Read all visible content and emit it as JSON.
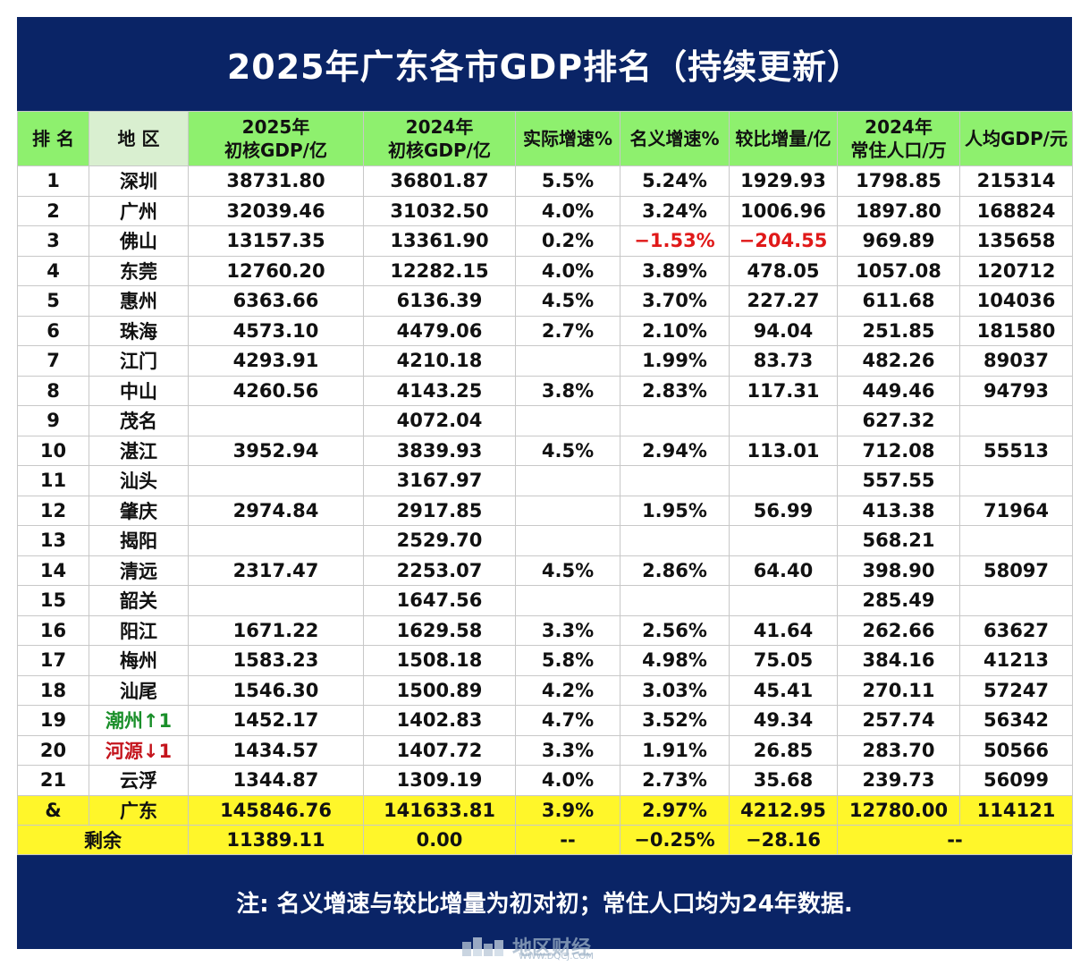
{
  "title": "2025年广东各市GDP排名（持续更新）",
  "headers": {
    "rank": "排 名",
    "region": "地 区",
    "gdp2025_line1": "2025年",
    "gdp2025_line2": "初核GDP/亿",
    "gdp2024_line1": "2024年",
    "gdp2024_line2": "初核GDP/亿",
    "real_growth": "实际增速%",
    "nominal_growth": "名义增速%",
    "increment": "较比增量/亿",
    "pop_line1": "2024年",
    "pop_line2": "常住人口/万",
    "per_capita": "人均GDP/元"
  },
  "rows": [
    {
      "rank": "1",
      "city": "深圳",
      "gdp2025": "38731.80",
      "gdp2024": "36801.87",
      "real": "5.5%",
      "nominal": "5.24%",
      "increment": "1929.93",
      "pop": "1798.85",
      "per_capita": "215314"
    },
    {
      "rank": "2",
      "city": "广州",
      "gdp2025": "32039.46",
      "gdp2024": "31032.50",
      "real": "4.0%",
      "nominal": "3.24%",
      "increment": "1006.96",
      "pop": "1897.80",
      "per_capita": "168824"
    },
    {
      "rank": "3",
      "city": "佛山",
      "gdp2025": "13157.35",
      "gdp2024": "13361.90",
      "real": "0.2%",
      "nominal": "−1.53%",
      "increment": "−204.55",
      "pop": "969.89",
      "per_capita": "135658"
    },
    {
      "rank": "4",
      "city": "东莞",
      "gdp2025": "12760.20",
      "gdp2024": "12282.15",
      "real": "4.0%",
      "nominal": "3.89%",
      "increment": "478.05",
      "pop": "1057.08",
      "per_capita": "120712"
    },
    {
      "rank": "5",
      "city": "惠州",
      "gdp2025": "6363.66",
      "gdp2024": "6136.39",
      "real": "4.5%",
      "nominal": "3.70%",
      "increment": "227.27",
      "pop": "611.68",
      "per_capita": "104036"
    },
    {
      "rank": "6",
      "city": "珠海",
      "gdp2025": "4573.10",
      "gdp2024": "4479.06",
      "real": "2.7%",
      "nominal": "2.10%",
      "increment": "94.04",
      "pop": "251.85",
      "per_capita": "181580"
    },
    {
      "rank": "7",
      "city": "江门",
      "gdp2025": "4293.91",
      "gdp2024": "4210.18",
      "real": "",
      "nominal": "1.99%",
      "increment": "83.73",
      "pop": "482.26",
      "per_capita": "89037"
    },
    {
      "rank": "8",
      "city": "中山",
      "gdp2025": "4260.56",
      "gdp2024": "4143.25",
      "real": "3.8%",
      "nominal": "2.83%",
      "increment": "117.31",
      "pop": "449.46",
      "per_capita": "94793"
    },
    {
      "rank": "9",
      "city": "茂名",
      "gdp2025": "",
      "gdp2024": "4072.04",
      "real": "",
      "nominal": "",
      "increment": "",
      "pop": "627.32",
      "per_capita": ""
    },
    {
      "rank": "10",
      "city": "湛江",
      "gdp2025": "3952.94",
      "gdp2024": "3839.93",
      "real": "4.5%",
      "nominal": "2.94%",
      "increment": "113.01",
      "pop": "712.08",
      "per_capita": "55513"
    },
    {
      "rank": "11",
      "city": "汕头",
      "gdp2025": "",
      "gdp2024": "3167.97",
      "real": "",
      "nominal": "",
      "increment": "",
      "pop": "557.55",
      "per_capita": ""
    },
    {
      "rank": "12",
      "city": "肇庆",
      "gdp2025": "2974.84",
      "gdp2024": "2917.85",
      "real": "",
      "nominal": "1.95%",
      "increment": "56.99",
      "pop": "413.38",
      "per_capita": "71964"
    },
    {
      "rank": "13",
      "city": "揭阳",
      "gdp2025": "",
      "gdp2024": "2529.70",
      "real": "",
      "nominal": "",
      "increment": "",
      "pop": "568.21",
      "per_capita": ""
    },
    {
      "rank": "14",
      "city": "清远",
      "gdp2025": "2317.47",
      "gdp2024": "2253.07",
      "real": "4.5%",
      "nominal": "2.86%",
      "increment": "64.40",
      "pop": "398.90",
      "per_capita": "58097"
    },
    {
      "rank": "15",
      "city": "韶关",
      "gdp2025": "",
      "gdp2024": "1647.56",
      "real": "",
      "nominal": "",
      "increment": "",
      "pop": "285.49",
      "per_capita": ""
    },
    {
      "rank": "16",
      "city": "阳江",
      "gdp2025": "1671.22",
      "gdp2024": "1629.58",
      "real": "3.3%",
      "nominal": "2.56%",
      "increment": "41.64",
      "pop": "262.66",
      "per_capita": "63627"
    },
    {
      "rank": "17",
      "city": "梅州",
      "gdp2025": "1583.23",
      "gdp2024": "1508.18",
      "real": "5.8%",
      "nominal": "4.98%",
      "increment": "75.05",
      "pop": "384.16",
      "per_capita": "41213"
    },
    {
      "rank": "18",
      "city": "汕尾",
      "gdp2025": "1546.30",
      "gdp2024": "1500.89",
      "real": "4.2%",
      "nominal": "3.03%",
      "increment": "45.41",
      "pop": "270.11",
      "per_capita": "57247"
    },
    {
      "rank": "19",
      "city": "潮州↑1",
      "gdp2025": "1452.17",
      "gdp2024": "1402.83",
      "real": "4.7%",
      "nominal": "3.52%",
      "increment": "49.34",
      "pop": "257.74",
      "per_capita": "56342"
    },
    {
      "rank": "20",
      "city": "河源↓1",
      "gdp2025": "1434.57",
      "gdp2024": "1407.72",
      "real": "3.3%",
      "nominal": "1.91%",
      "increment": "26.85",
      "pop": "283.70",
      "per_capita": "50566"
    },
    {
      "rank": "21",
      "city": "云浮",
      "gdp2025": "1344.87",
      "gdp2024": "1309.19",
      "real": "4.0%",
      "nominal": "2.73%",
      "increment": "35.68",
      "pop": "239.73",
      "per_capita": "56099"
    }
  ],
  "total": {
    "rank": "&",
    "city": "广东",
    "gdp2025": "145846.76",
    "gdp2024": "141633.81",
    "real": "3.9%",
    "nominal": "2.97%",
    "increment": "4212.95",
    "pop": "12780.00",
    "per_capita": "114121"
  },
  "remainder": {
    "label": "剩余",
    "gdp2025": "11389.11",
    "gdp2024": "0.00",
    "real": "--",
    "nominal": "−0.25%",
    "increment": "−28.16",
    "rest": "--"
  },
  "footer_note": "注: 名义增速与较比增量为初对初；常住人口均为24年数据.",
  "watermark": "地区财经",
  "watermark_sub": "WWW.DQCJ.COM",
  "colors": {
    "header_bg": "#0a2466",
    "header_row": "#8ef06e",
    "total_row": "#fff62a",
    "negative": "#e01919",
    "up": "#1a8f2a",
    "down": "#c4141c"
  }
}
